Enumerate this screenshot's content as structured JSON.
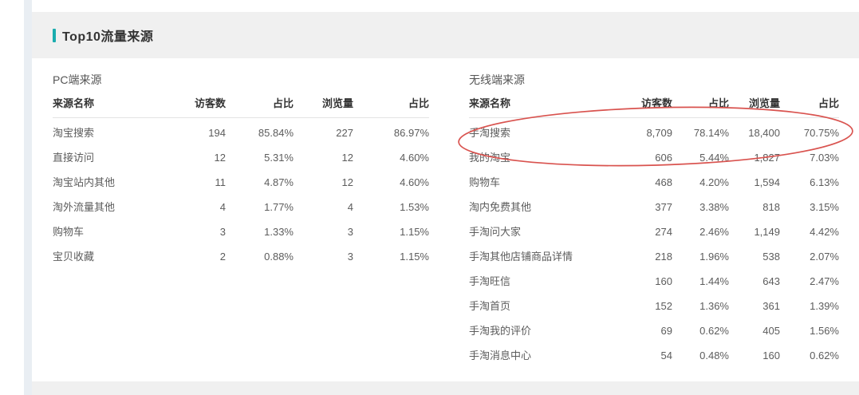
{
  "page": {
    "title": "Top10流量来源",
    "accent_color": "#1aacae",
    "annotation_color": "#d9534f",
    "annotation": "red hand-drawn ellipse circling the wireless table header and first data row"
  },
  "pc_table": {
    "section_title": "PC端来源",
    "columns": [
      "来源名称",
      "访客数",
      "占比",
      "浏览量",
      "占比"
    ],
    "rows": [
      [
        "淘宝搜索",
        "194",
        "85.84%",
        "227",
        "86.97%"
      ],
      [
        "直接访问",
        "12",
        "5.31%",
        "12",
        "4.60%"
      ],
      [
        "淘宝站内其他",
        "11",
        "4.87%",
        "12",
        "4.60%"
      ],
      [
        "淘外流量其他",
        "4",
        "1.77%",
        "4",
        "1.53%"
      ],
      [
        "购物车",
        "3",
        "1.33%",
        "3",
        "1.15%"
      ],
      [
        "宝贝收藏",
        "2",
        "0.88%",
        "3",
        "1.15%"
      ]
    ]
  },
  "wireless_table": {
    "section_title": "无线端来源",
    "columns": [
      "来源名称",
      "访客数",
      "占比",
      "浏览量",
      "占比"
    ],
    "rows": [
      [
        "手淘搜索",
        "8,709",
        "78.14%",
        "18,400",
        "70.75%"
      ],
      [
        "我的淘宝",
        "606",
        "5.44%",
        "1,827",
        "7.03%"
      ],
      [
        "购物车",
        "468",
        "4.20%",
        "1,594",
        "6.13%"
      ],
      [
        "淘内免费其他",
        "377",
        "3.38%",
        "818",
        "3.15%"
      ],
      [
        "手淘问大家",
        "274",
        "2.46%",
        "1,149",
        "4.42%"
      ],
      [
        "手淘其他店铺商品详情",
        "218",
        "1.96%",
        "538",
        "2.07%"
      ],
      [
        "手淘旺信",
        "160",
        "1.44%",
        "643",
        "2.47%"
      ],
      [
        "手淘首页",
        "152",
        "1.36%",
        "361",
        "1.39%"
      ],
      [
        "手淘我的评价",
        "69",
        "0.62%",
        "405",
        "1.56%"
      ],
      [
        "手淘消息中心",
        "54",
        "0.48%",
        "160",
        "0.62%"
      ]
    ]
  }
}
